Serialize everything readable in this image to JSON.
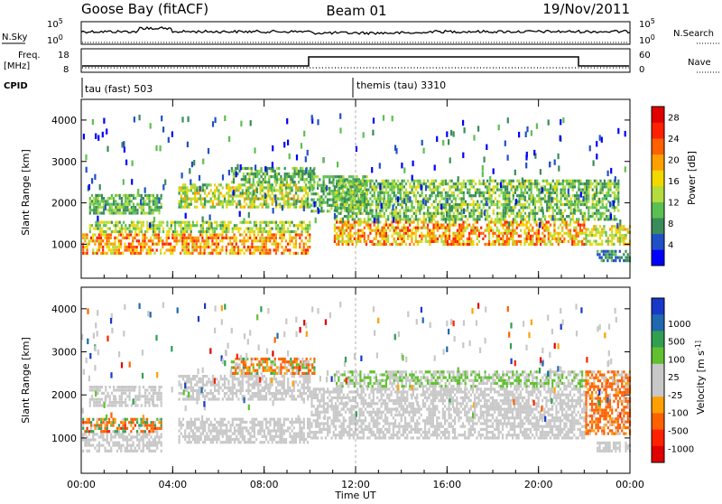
{
  "header": {
    "station": "Goose Bay (fitACF)",
    "beam": "Beam 01",
    "date": "19/Nov/2011"
  },
  "top_strips": {
    "nsky_label": "N.Sky",
    "nsearch_label": "N.Search",
    "freq_label_line1": "Freq.",
    "freq_label_line2": "[MHz]",
    "nave_label": "Nave",
    "cpid_label": "CPID",
    "noise_ticks_left": [
      "10^5",
      "10^0"
    ],
    "noise_ticks_right": [
      "10^5",
      "10^0"
    ],
    "freq_ticks": [
      "18",
      "8"
    ],
    "nave_ticks": [
      "60",
      "0"
    ],
    "cpid_segments": [
      {
        "label": "tau (fast) 503",
        "start_hour": 0
      },
      {
        "label": "themis (tau) 3310",
        "start_hour": 11.9
      }
    ]
  },
  "colors": {
    "power_scale": [
      "#0000ff",
      "#2050c8",
      "#3a8c5a",
      "#5cc050",
      "#b4dc3c",
      "#f0d800",
      "#ffa000",
      "#ff6000",
      "#ff2000",
      "#e00000"
    ],
    "velocity_scale": [
      "#1838c8",
      "#2068b0",
      "#30a050",
      "#60c030",
      "#c8c8c8",
      "#c8c8c8",
      "#ffa000",
      "#ff6000",
      "#ff2000",
      "#e00000"
    ]
  },
  "chart_data": [
    {
      "type": "heatmap",
      "panel": "power",
      "ylabel": "Slant Range [km]",
      "ylim": [
        180,
        4500
      ],
      "yticks": [
        1000,
        2000,
        3000,
        4000
      ],
      "xlim": [
        0,
        24
      ],
      "colorbar_label": "Power [dB]",
      "colorbar_ticks": [
        4,
        8,
        12,
        16,
        20,
        24,
        28
      ],
      "colorbar_range": [
        0,
        30
      ],
      "bands": [
        {
          "t0": 0.0,
          "t1": 10.0,
          "r0": 780,
          "r1": 1300,
          "v0": 14,
          "v1": 26
        },
        {
          "t0": 0.3,
          "t1": 10.0,
          "r0": 1300,
          "r1": 1600,
          "v0": 8,
          "v1": 18
        },
        {
          "t0": 0.3,
          "t1": 3.5,
          "r0": 1750,
          "r1": 2250,
          "v0": 6,
          "v1": 14
        },
        {
          "t0": 4.2,
          "t1": 10.0,
          "r0": 1900,
          "r1": 2500,
          "v0": 8,
          "v1": 20
        },
        {
          "t0": 6.5,
          "t1": 10.2,
          "r0": 2500,
          "r1": 2900,
          "v0": 6,
          "v1": 14
        },
        {
          "t0": 10.0,
          "t1": 12.5,
          "r0": 1800,
          "r1": 2700,
          "v0": 6,
          "v1": 14
        },
        {
          "t0": 11.0,
          "t1": 22.0,
          "r0": 1000,
          "r1": 1600,
          "v0": 12,
          "v1": 26
        },
        {
          "t0": 11.0,
          "t1": 23.5,
          "r0": 1600,
          "r1": 2600,
          "v0": 6,
          "v1": 16
        },
        {
          "t0": 22.0,
          "t1": 24.0,
          "r0": 1000,
          "r1": 1500,
          "v0": 10,
          "v1": 20
        },
        {
          "t0": 22.5,
          "t1": 24.0,
          "r0": 600,
          "r1": 900,
          "v0": 4,
          "v1": 10
        }
      ]
    },
    {
      "type": "heatmap",
      "panel": "velocity",
      "ylabel": "Slant Range [km]",
      "xlabel": "Time UT",
      "ylim": [
        180,
        4500
      ],
      "yticks": [
        1000,
        2000,
        3000,
        4000
      ],
      "xlim": [
        0,
        24
      ],
      "xticks": [
        "00:00",
        "04:00",
        "08:00",
        "12:00",
        "16:00",
        "20:00",
        "00:00"
      ],
      "colorbar_label": "Velocity [m s^-1]",
      "colorbar_ticks": [
        "1000",
        "500",
        "100",
        "25",
        "-25",
        "-100",
        "-500",
        "-1000"
      ],
      "bands": [
        {
          "t0": 0.0,
          "t1": 3.5,
          "r0": 700,
          "r1": 1150,
          "v0": -25,
          "v1": 25
        },
        {
          "t0": 0.0,
          "t1": 3.5,
          "r0": 1150,
          "r1": 1500,
          "v0": -300,
          "v1": 200
        },
        {
          "t0": 0.3,
          "t1": 3.5,
          "r0": 1750,
          "r1": 2250,
          "v0": -25,
          "v1": 25
        },
        {
          "t0": 4.2,
          "t1": 10.0,
          "r0": 900,
          "r1": 1500,
          "v0": -25,
          "v1": 25
        },
        {
          "t0": 4.2,
          "t1": 10.0,
          "r0": 1900,
          "r1": 2500,
          "v0": -25,
          "v1": 25
        },
        {
          "t0": 6.5,
          "t1": 10.2,
          "r0": 2500,
          "r1": 2900,
          "v0": -150,
          "v1": 80
        },
        {
          "t0": 10.0,
          "t1": 22.0,
          "r0": 1000,
          "r1": 2200,
          "v0": -25,
          "v1": 25
        },
        {
          "t0": 11.0,
          "t1": 22.0,
          "r0": 2200,
          "r1": 2600,
          "v0": -25,
          "v1": 60
        },
        {
          "t0": 22.0,
          "t1": 24.0,
          "r0": 1100,
          "r1": 2600,
          "v0": -200,
          "v1": 25
        },
        {
          "t0": 22.5,
          "t1": 24.0,
          "r0": 700,
          "r1": 950,
          "v0": -25,
          "v1": 25
        }
      ]
    }
  ]
}
